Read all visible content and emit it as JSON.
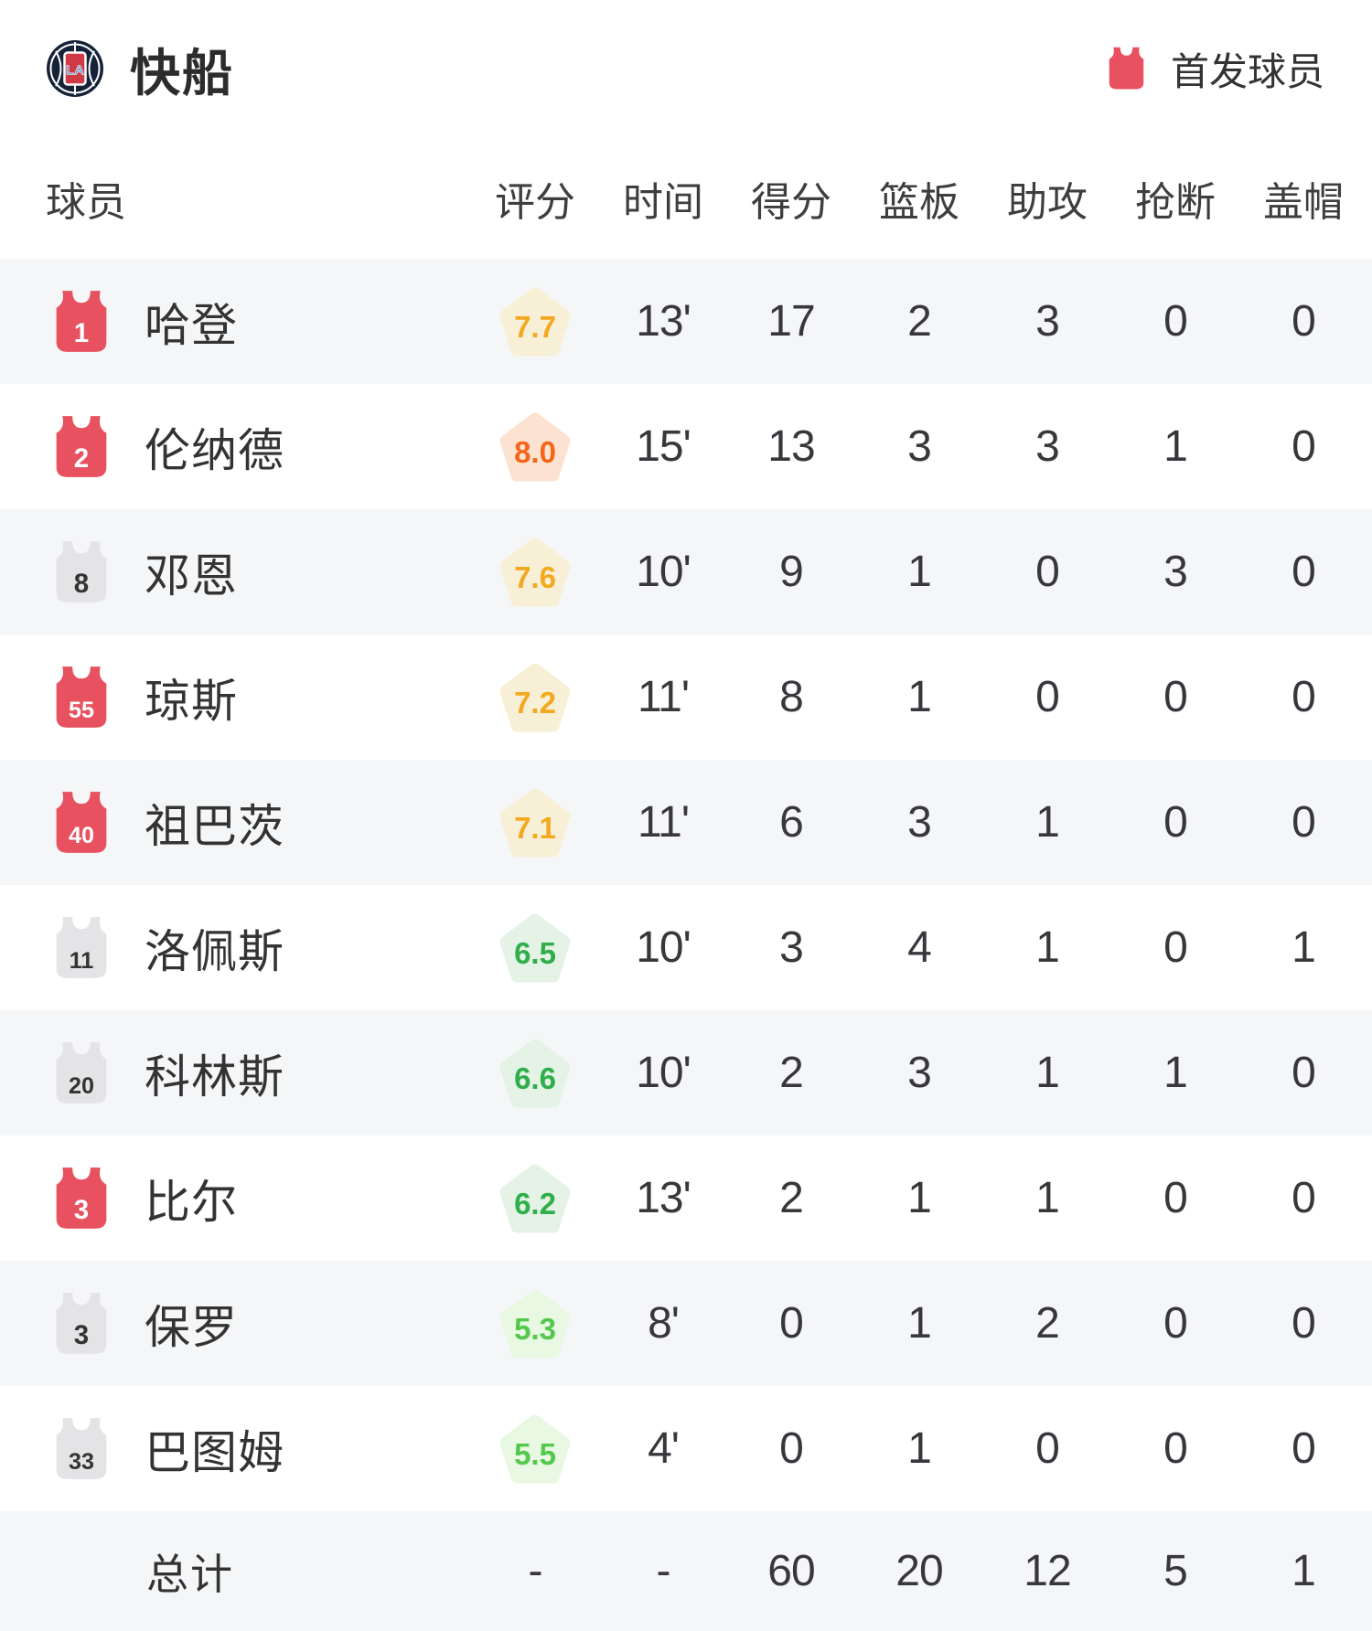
{
  "header": {
    "team_name": "快船",
    "legend_label": "首发球员"
  },
  "table": {
    "columns": [
      "球员",
      "评分",
      "时间",
      "得分",
      "篮板",
      "助攻",
      "抢断",
      "盖帽"
    ],
    "rows": [
      {
        "number": "1",
        "starter": true,
        "name": "哈登",
        "rating": "7.7",
        "tier": "amber",
        "time": "13'",
        "pts": "17",
        "reb": "2",
        "ast": "3",
        "stl": "0",
        "blk": "0"
      },
      {
        "number": "2",
        "starter": true,
        "name": "伦纳德",
        "rating": "8.0",
        "tier": "orange",
        "time": "15'",
        "pts": "13",
        "reb": "3",
        "ast": "3",
        "stl": "1",
        "blk": "0"
      },
      {
        "number": "8",
        "starter": false,
        "name": "邓恩",
        "rating": "7.6",
        "tier": "amber",
        "time": "10'",
        "pts": "9",
        "reb": "1",
        "ast": "0",
        "stl": "3",
        "blk": "0"
      },
      {
        "number": "55",
        "starter": true,
        "name": "琼斯",
        "rating": "7.2",
        "tier": "amber",
        "time": "11'",
        "pts": "8",
        "reb": "1",
        "ast": "0",
        "stl": "0",
        "blk": "0"
      },
      {
        "number": "40",
        "starter": true,
        "name": "祖巴茨",
        "rating": "7.1",
        "tier": "amber",
        "time": "11'",
        "pts": "6",
        "reb": "3",
        "ast": "1",
        "stl": "0",
        "blk": "0"
      },
      {
        "number": "11",
        "starter": false,
        "name": "洛佩斯",
        "rating": "6.5",
        "tier": "green",
        "time": "10'",
        "pts": "3",
        "reb": "4",
        "ast": "1",
        "stl": "0",
        "blk": "1"
      },
      {
        "number": "20",
        "starter": false,
        "name": "科林斯",
        "rating": "6.6",
        "tier": "green",
        "time": "10'",
        "pts": "2",
        "reb": "3",
        "ast": "1",
        "stl": "1",
        "blk": "0"
      },
      {
        "number": "3",
        "starter": true,
        "name": "比尔",
        "rating": "6.2",
        "tier": "green",
        "time": "13'",
        "pts": "2",
        "reb": "1",
        "ast": "1",
        "stl": "0",
        "blk": "0"
      },
      {
        "number": "3",
        "starter": false,
        "name": "保罗",
        "rating": "5.3",
        "tier": "lightgreen",
        "time": "8'",
        "pts": "0",
        "reb": "1",
        "ast": "2",
        "stl": "0",
        "blk": "0"
      },
      {
        "number": "33",
        "starter": false,
        "name": "巴图姆",
        "rating": "5.5",
        "tier": "lightgreen",
        "time": "4'",
        "pts": "0",
        "reb": "1",
        "ast": "0",
        "stl": "0",
        "blk": "0"
      }
    ],
    "total": {
      "label": "总计",
      "rating": "-",
      "time": "-",
      "pts": "60",
      "reb": "20",
      "ast": "12",
      "stl": "5",
      "blk": "1"
    }
  },
  "colors": {
    "starter_jersey": "#e8515f",
    "starter_number": "#ffffff",
    "bench_jersey": "#e4e4e6",
    "bench_number": "#333333",
    "row_stripe": "#f5f6f8",
    "tiers": {
      "orange": {
        "bg": "#fce3d1",
        "fg": "#f4661b"
      },
      "amber": {
        "bg": "#f8f0d6",
        "fg": "#f3a81f"
      },
      "green": {
        "bg": "#e4f3e6",
        "fg": "#2fae4a"
      },
      "lightgreen": {
        "bg": "#e8f8e3",
        "fg": "#53c84b"
      }
    },
    "logo_navy": "#152238",
    "logo_red": "#d03a45",
    "logo_blue": "#5b9bd5"
  }
}
